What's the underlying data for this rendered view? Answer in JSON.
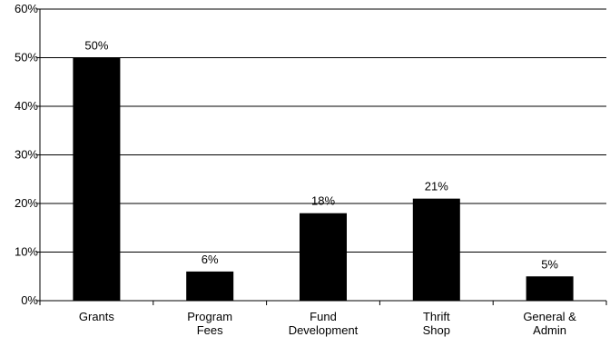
{
  "colors": {
    "bar": "#000000",
    "grid": "#000000",
    "axis": "#000000",
    "background": "#ffffff"
  },
  "chart_data": {
    "type": "bar",
    "title": "",
    "xlabel": "",
    "ylabel": "",
    "categories": [
      [
        "Grants"
      ],
      [
        "Program",
        "Fees"
      ],
      [
        "Fund",
        "Development"
      ],
      [
        "Thrift",
        "Shop"
      ],
      [
        "General &",
        "Admin"
      ]
    ],
    "values": [
      50,
      6,
      18,
      21,
      5
    ],
    "data_labels": [
      "50%",
      "6%",
      "18%",
      "21%",
      "5%"
    ],
    "ylim": [
      0,
      60
    ],
    "yticks": [
      0,
      10,
      20,
      30,
      40,
      50,
      60
    ],
    "ytick_labels": [
      "0%",
      "10%",
      "20%",
      "30%",
      "40%",
      "50%",
      "60%"
    ],
    "grid": true,
    "legend": "none"
  }
}
